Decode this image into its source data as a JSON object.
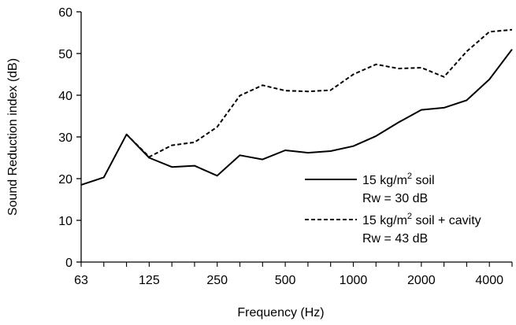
{
  "chart_data": {
    "type": "line",
    "xlabel": "Frequency (Hz)",
    "ylabel": "Sound Reduction index (dB)",
    "ylim": [
      0,
      60
    ],
    "yticks": [
      0,
      10,
      20,
      30,
      40,
      50,
      60
    ],
    "x_scale": "log",
    "x_points_hz": [
      63,
      80,
      100,
      125,
      160,
      200,
      250,
      315,
      400,
      500,
      630,
      800,
      1000,
      1250,
      1600,
      2000,
      2500,
      3150,
      4000,
      5000
    ],
    "x_tick_labels": [
      "63",
      "125",
      "250",
      "500",
      "1000",
      "2000",
      "4000"
    ],
    "grid": false,
    "legend_position": "right",
    "series": [
      {
        "name_lines": [
          "15 kg/m",
          "2",
          " soil"
        ],
        "rating": "Rw = 30 dB",
        "style": "solid",
        "color": "#000000",
        "values": [
          18.5,
          20.3,
          30.6,
          25.0,
          22.8,
          23.1,
          20.7,
          25.6,
          24.6,
          26.8,
          26.2,
          26.6,
          27.8,
          30.2,
          33.5,
          36.5,
          37.0,
          38.8,
          43.8,
          51.0
        ]
      },
      {
        "name_lines": [
          "15 kg/m",
          "2",
          " soil + cavity"
        ],
        "rating": "Rw = 43 dB",
        "style": "dashed",
        "color": "#000000",
        "values": [
          null,
          null,
          30.6,
          25.2,
          28.0,
          28.7,
          32.4,
          39.9,
          42.4,
          41.1,
          40.9,
          41.2,
          45.0,
          47.4,
          46.4,
          46.6,
          44.4,
          50.5,
          55.2,
          55.7
        ]
      }
    ]
  }
}
